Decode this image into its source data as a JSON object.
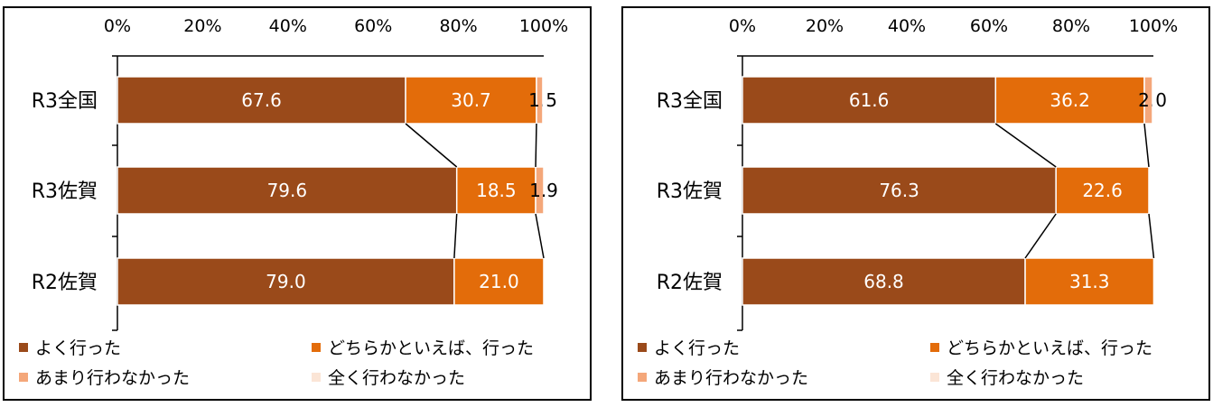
{
  "colors": {
    "very": "#9A4A1A",
    "somewhat": "#E36C0A",
    "rarely": "#F4A77A",
    "never": "#FBE5D6"
  },
  "chart_data": [
    {
      "type": "bar",
      "orientation": "horizontal-stacked-100",
      "categories": [
        "R3全国",
        "R3佐賀",
        "R2佐賀"
      ],
      "xlim": [
        0,
        100
      ],
      "xticks": [
        "0%",
        "20%",
        "40%",
        "60%",
        "80%",
        "100%"
      ],
      "axis_position": "top",
      "legend_position": "bottom",
      "series": [
        {
          "name": "よく行った",
          "color_key": "very",
          "values": [
            67.6,
            79.6,
            79.0
          ],
          "labels": [
            "67.6",
            "79.6",
            "79.0"
          ]
        },
        {
          "name": "どちらかといえば、行った",
          "color_key": "somewhat",
          "values": [
            30.7,
            18.5,
            21.0
          ],
          "labels": [
            "30.7",
            "18.5",
            "21.0"
          ]
        },
        {
          "name": "あまり行わなかった",
          "color_key": "rarely",
          "values": [
            1.5,
            1.9,
            0
          ],
          "labels": [
            "1.5",
            "1.9",
            ""
          ]
        },
        {
          "name": "全く行わなかった",
          "color_key": "never",
          "values": [
            0.2,
            0.0,
            0
          ],
          "labels": [
            "",
            "",
            ""
          ]
        }
      ]
    },
    {
      "type": "bar",
      "orientation": "horizontal-stacked-100",
      "categories": [
        "R3全国",
        "R3佐賀",
        "R2佐賀"
      ],
      "xlim": [
        0,
        100
      ],
      "xticks": [
        "0%",
        "20%",
        "40%",
        "60%",
        "80%",
        "100%"
      ],
      "axis_position": "top",
      "legend_position": "bottom",
      "series": [
        {
          "name": "よく行った",
          "color_key": "very",
          "values": [
            61.6,
            76.3,
            68.8
          ],
          "labels": [
            "61.6",
            "76.3",
            "68.8"
          ]
        },
        {
          "name": "どちらかといえば、行った",
          "color_key": "somewhat",
          "values": [
            36.2,
            22.6,
            31.3
          ],
          "labels": [
            "36.2",
            "22.6",
            "31.3"
          ]
        },
        {
          "name": "あまり行わなかった",
          "color_key": "rarely",
          "values": [
            2.0,
            0,
            0
          ],
          "labels": [
            "2.0",
            "",
            ""
          ]
        },
        {
          "name": "全く行わなかった",
          "color_key": "never",
          "values": [
            0.2,
            0,
            0
          ],
          "labels": [
            "",
            "",
            ""
          ]
        }
      ]
    }
  ]
}
